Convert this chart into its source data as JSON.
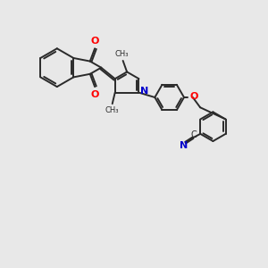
{
  "background_color": "#e8e8e8",
  "bond_color": "#2a2a2a",
  "oxygen_color": "#ff0000",
  "nitrogen_color": "#0000cc",
  "line_width": 1.4,
  "figsize": [
    3.0,
    3.0
  ],
  "dpi": 100,
  "xlim": [
    0,
    10
  ],
  "ylim": [
    0,
    10
  ]
}
